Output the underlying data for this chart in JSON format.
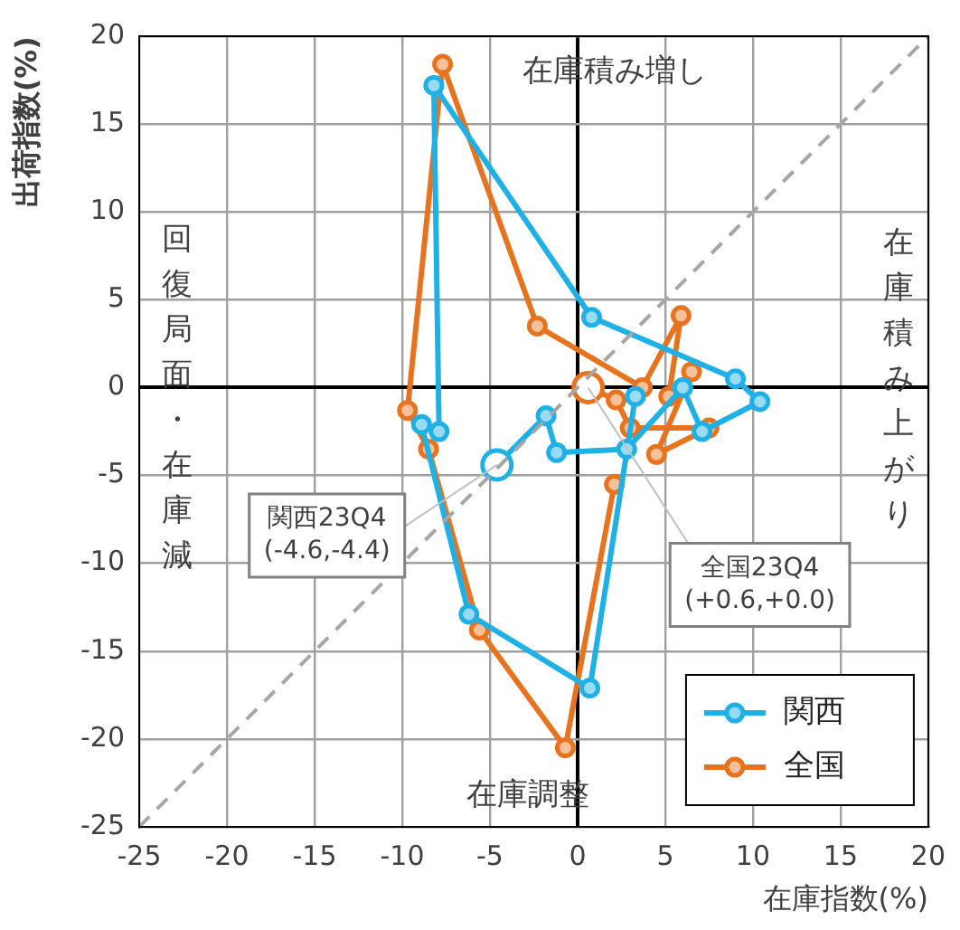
{
  "chart_data": {
    "type": "line",
    "xlabel": "在庫指数(%)",
    "ylabel": "出荷指数(%)",
    "xlim": [
      -25,
      20
    ],
    "xticks": [
      -25,
      -20,
      -15,
      -10,
      -5,
      0,
      5,
      10,
      15,
      20
    ],
    "ylim": [
      -25,
      20
    ],
    "yticks": [
      -25,
      -20,
      -15,
      -10,
      -5,
      0,
      5,
      10,
      15,
      20
    ],
    "grid": true,
    "legend": "bottom right",
    "marker": "circle",
    "line_style": "solid",
    "series": [
      {
        "type": "line",
        "color": "#a6a6a6",
        "line_style": "dashed",
        "marker": "none",
        "x": [
          -25,
          20
        ],
        "values": [
          -25,
          20
        ]
      },
      {
        "name": "関西",
        "color": "#1fb0e6",
        "x": [
          3.3,
          0.7,
          -6.2,
          -8.9,
          -7.9,
          -8.2,
          0.8,
          9.0,
          10.4,
          7.1,
          6.0,
          2.8,
          -1.2,
          -1.8,
          -4.6
        ],
        "values": [
          -0.5,
          -17.1,
          -12.9,
          -2.1,
          -2.5,
          17.2,
          4.0,
          0.5,
          -0.8,
          -2.5,
          0.0,
          -3.5,
          -3.7,
          -1.6,
          -4.4
        ]
      },
      {
        "name": "全国",
        "color": "#e8731f",
        "x": [
          2.1,
          -0.7,
          -5.6,
          -8.5,
          -9.7,
          -7.7,
          -2.3,
          3.7,
          5.9,
          5.2,
          6.5,
          4.5,
          7.5,
          3.0,
          2.2,
          0.6
        ],
        "values": [
          -5.5,
          -20.5,
          -13.8,
          -3.5,
          -1.3,
          18.4,
          3.5,
          0.0,
          4.1,
          -0.5,
          0.9,
          -3.8,
          -2.3,
          -2.3,
          -0.7,
          0.0
        ]
      }
    ],
    "annotations": [
      "在庫積み増し",
      "在庫積み上がり",
      "在庫調整",
      "回復局面・在庫減",
      {
        "text": "関西23Q4\n(-4.6,-4.4)",
        "x": -4.6,
        "y": -4.4
      },
      {
        "text": "全国23Q4\n(+0.6,+0.0)",
        "x": 0.6,
        "y": 0.0
      }
    ]
  }
}
